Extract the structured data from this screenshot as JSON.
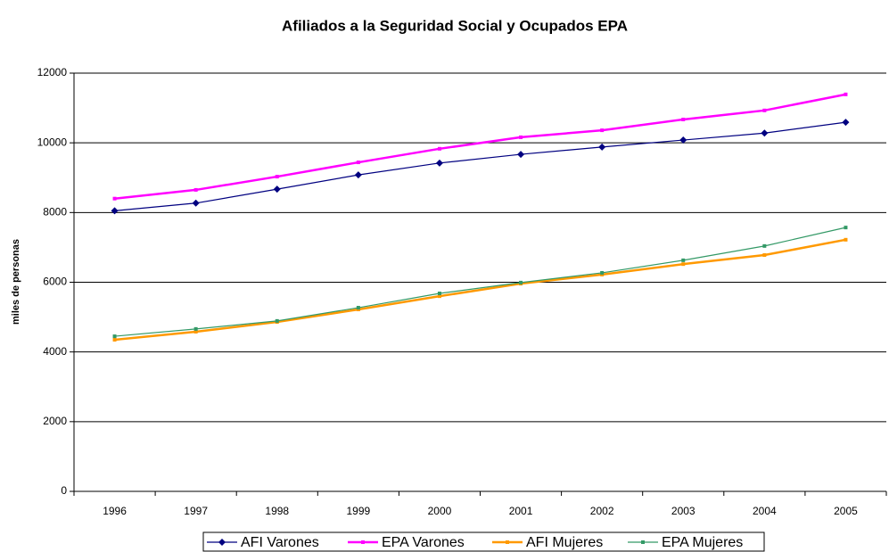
{
  "chart_data": {
    "type": "line",
    "title": "Afiliados a la Seguridad Social y Ocupados EPA",
    "y_label": "miles de personas",
    "categories": [
      "1996",
      "1997",
      "1998",
      "1999",
      "2000",
      "2001",
      "2002",
      "2003",
      "2004",
      "2005"
    ],
    "series": [
      {
        "name": "AFI Varones",
        "color": "#000080",
        "marker": "diamond",
        "values": [
          8050,
          8270,
          8670,
          9080,
          9420,
          9670,
          9880,
          10080,
          10280,
          10590
        ]
      },
      {
        "name": "EPA Varones",
        "color": "#ff00ff",
        "marker": "square",
        "values": [
          8400,
          8650,
          9030,
          9440,
          9830,
          10160,
          10360,
          10670,
          10930,
          11390
        ]
      },
      {
        "name": "AFI Mujeres",
        "color": "#ff9900",
        "marker": "square",
        "values": [
          4350,
          4580,
          4860,
          5220,
          5600,
          5960,
          6220,
          6520,
          6780,
          7220
        ]
      },
      {
        "name": "EPA Mujeres",
        "color": "#339966",
        "marker": "square",
        "values": [
          4450,
          4660,
          4890,
          5270,
          5680,
          5990,
          6270,
          6630,
          7040,
          7570
        ]
      }
    ],
    "ylim": [
      0,
      12000
    ],
    "yticks": [
      0,
      2000,
      4000,
      6000,
      8000,
      10000,
      12000
    ],
    "grid": true,
    "legend": "bottom"
  }
}
